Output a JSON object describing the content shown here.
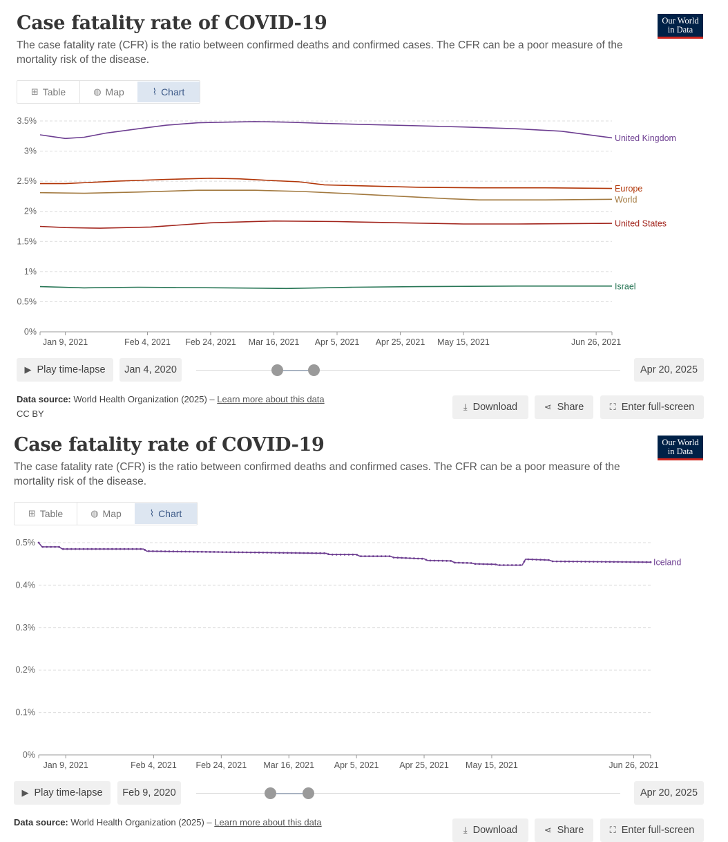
{
  "panels": [
    {
      "title": "Case fatality rate of COVID-19",
      "subtitle": "The case fatality rate (CFR) is the ratio between confirmed deaths and confirmed cases. The CFR can be a poor measure of the mortality risk of the disease.",
      "logo": {
        "line1": "Our World",
        "line2": "in Data"
      },
      "tabs": {
        "table": "Table",
        "map": "Map",
        "chart": "Chart",
        "active": "chart"
      },
      "controls": {
        "play": "Play time-lapse",
        "start_date": "Jan 4, 2020",
        "end_date": "Apr 20, 2025"
      },
      "footer": {
        "source_label": "Data source:",
        "source_text": "World Health Organization (2025) –",
        "learn_more": "Learn more about this data",
        "license": "CC BY",
        "download": "Download",
        "share": "Share",
        "fullscreen": "Enter full-screen"
      }
    },
    {
      "title": "Case fatality rate of COVID-19",
      "subtitle": "The case fatality rate (CFR) is the ratio between confirmed deaths and confirmed cases. The CFR can be a poor measure of the mortality risk of the disease.",
      "logo": {
        "line1": "Our World",
        "line2": "in Data"
      },
      "tabs": {
        "table": "Table",
        "map": "Map",
        "chart": "Chart",
        "active": "chart"
      },
      "controls": {
        "play": "Play time-lapse",
        "start_date": "Feb 9, 2020",
        "end_date": "Apr 20, 2025"
      },
      "footer": {
        "source_label": "Data source:",
        "source_text": "World Health Organization (2025) –",
        "learn_more": "Learn more about this data",
        "download": "Download",
        "share": "Share",
        "fullscreen": "Enter full-screen"
      }
    }
  ],
  "chart_data": [
    {
      "type": "line",
      "x_range": [
        "2021-01-01",
        "2021-07-01"
      ],
      "ylim": [
        0,
        3.5
      ],
      "y_ticks": [
        0,
        0.5,
        1,
        1.5,
        2,
        2.5,
        3,
        3.5
      ],
      "y_tick_labels": [
        "0%",
        "0.5%",
        "1%",
        "1.5%",
        "2%",
        "2.5%",
        "3%",
        "3.5%"
      ],
      "x_ticks": [
        "2021-01-09",
        "2021-02-04",
        "2021-02-24",
        "2021-03-16",
        "2021-04-05",
        "2021-04-25",
        "2021-05-15",
        "2021-06-26"
      ],
      "x_tick_labels": [
        "Jan 9, 2021",
        "Feb 4, 2021",
        "Feb 24, 2021",
        "Mar 16, 2021",
        "Apr 5, 2021",
        "Apr 25, 2021",
        "May 15, 2021",
        "Jun 26, 2021"
      ],
      "grid": true,
      "legend": "inline-right",
      "series": [
        {
          "name": "United Kingdom",
          "color": "#6d3e91",
          "x": [
            "2021-01-01",
            "2021-01-05",
            "2021-01-09",
            "2021-01-15",
            "2021-01-22",
            "2021-02-01",
            "2021-02-10",
            "2021-02-20",
            "2021-03-01",
            "2021-03-10",
            "2021-03-20",
            "2021-04-01",
            "2021-04-15",
            "2021-05-01",
            "2021-05-15",
            "2021-06-01",
            "2021-06-15",
            "2021-07-01"
          ],
          "y": [
            3.27,
            3.24,
            3.21,
            3.23,
            3.3,
            3.37,
            3.43,
            3.47,
            3.48,
            3.49,
            3.48,
            3.46,
            3.44,
            3.42,
            3.4,
            3.37,
            3.33,
            3.22
          ]
        },
        {
          "name": "Europe",
          "color": "#b13507",
          "x": [
            "2021-01-01",
            "2021-01-09",
            "2021-01-25",
            "2021-02-10",
            "2021-02-24",
            "2021-03-05",
            "2021-03-16",
            "2021-03-24",
            "2021-04-01",
            "2021-04-15",
            "2021-05-01",
            "2021-05-20",
            "2021-06-10",
            "2021-07-01"
          ],
          "y": [
            2.46,
            2.46,
            2.5,
            2.53,
            2.55,
            2.54,
            2.51,
            2.49,
            2.44,
            2.42,
            2.4,
            2.39,
            2.39,
            2.38
          ]
        },
        {
          "name": "World",
          "color": "#a2793f",
          "x": [
            "2021-01-01",
            "2021-01-15",
            "2021-02-01",
            "2021-02-20",
            "2021-03-10",
            "2021-03-25",
            "2021-04-10",
            "2021-04-25",
            "2021-05-10",
            "2021-05-20",
            "2021-06-10",
            "2021-07-01"
          ],
          "y": [
            2.31,
            2.3,
            2.32,
            2.35,
            2.35,
            2.33,
            2.29,
            2.25,
            2.21,
            2.19,
            2.19,
            2.2
          ]
        },
        {
          "name": "United States",
          "color": "#a2251d",
          "x": [
            "2021-01-01",
            "2021-01-09",
            "2021-01-20",
            "2021-02-05",
            "2021-02-24",
            "2021-03-16",
            "2021-04-05",
            "2021-04-25",
            "2021-05-15",
            "2021-06-01",
            "2021-07-01"
          ],
          "y": [
            1.75,
            1.73,
            1.72,
            1.74,
            1.81,
            1.84,
            1.83,
            1.81,
            1.79,
            1.79,
            1.8
          ]
        },
        {
          "name": "Israel",
          "color": "#287656",
          "x": [
            "2021-01-01",
            "2021-01-15",
            "2021-02-01",
            "2021-03-01",
            "2021-03-20",
            "2021-04-10",
            "2021-05-01",
            "2021-06-01",
            "2021-07-01"
          ],
          "y": [
            0.75,
            0.73,
            0.74,
            0.73,
            0.72,
            0.74,
            0.75,
            0.76,
            0.76
          ]
        }
      ]
    },
    {
      "type": "line",
      "x_range": [
        "2021-01-01",
        "2021-07-01"
      ],
      "ylim": [
        0,
        0.5
      ],
      "y_ticks": [
        0,
        0.1,
        0.2,
        0.3,
        0.4,
        0.5
      ],
      "y_tick_labels": [
        "0%",
        "0.1%",
        "0.2%",
        "0.3%",
        "0.4%",
        "0.5%"
      ],
      "x_ticks": [
        "2021-01-09",
        "2021-02-04",
        "2021-02-24",
        "2021-03-16",
        "2021-04-05",
        "2021-04-25",
        "2021-05-15",
        "2021-06-26"
      ],
      "x_tick_labels": [
        "Jan 9, 2021",
        "Feb 4, 2021",
        "Feb 24, 2021",
        "Mar 16, 2021",
        "Apr 5, 2021",
        "Apr 25, 2021",
        "May 15, 2021",
        "Jun 26, 2021"
      ],
      "grid": true,
      "legend": "inline-right",
      "series": [
        {
          "name": "Iceland",
          "color": "#6d3e91",
          "markers": true,
          "x": [
            "2021-01-01",
            "2021-01-02",
            "2021-01-07",
            "2021-01-08",
            "2021-02-01",
            "2021-02-02",
            "2021-03-27",
            "2021-03-28",
            "2021-04-05",
            "2021-04-06",
            "2021-04-15",
            "2021-04-16",
            "2021-04-25",
            "2021-04-26",
            "2021-05-03",
            "2021-05-04",
            "2021-05-09",
            "2021-05-10",
            "2021-05-16",
            "2021-05-17",
            "2021-05-24",
            "2021-05-25",
            "2021-06-01",
            "2021-06-02",
            "2021-07-01"
          ],
          "y": [
            0.5,
            0.49,
            0.49,
            0.485,
            0.485,
            0.48,
            0.475,
            0.472,
            0.472,
            0.468,
            0.468,
            0.465,
            0.462,
            0.458,
            0.457,
            0.453,
            0.452,
            0.45,
            0.449,
            0.447,
            0.447,
            0.461,
            0.459,
            0.456,
            0.454
          ]
        }
      ]
    }
  ]
}
